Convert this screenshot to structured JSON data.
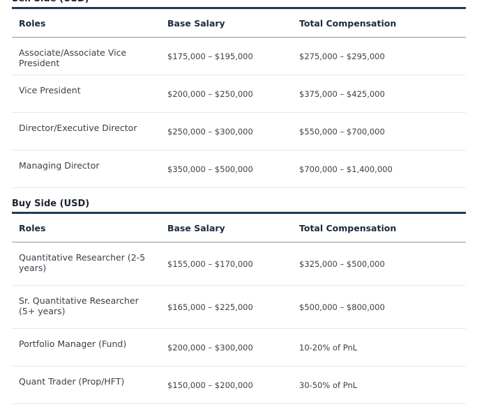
{
  "sections": [
    {
      "title": "Sell Side (USD)",
      "columns": [
        "Roles",
        "Base Salary",
        "Total Compensation"
      ],
      "rows": [
        [
          "Associate/Associate Vice President",
          "$175,000 – $195,000",
          "$275,000 – $295,000"
        ],
        [
          "Vice President",
          "$200,000 – $250,000",
          "$375,000 – $425,000"
        ],
        [
          "Director/Executive Director",
          "$250,000 – $300,000",
          "$550,000 – $700,000"
        ],
        [
          "Managing Director",
          "$350,000 – $500,000",
          "$700,000 – $1,400,000"
        ]
      ]
    },
    {
      "title": "Buy Side (USD)",
      "columns": [
        "Roles",
        "Base Salary",
        "Total Compensation"
      ],
      "rows": [
        [
          "Quantitative Researcher (2-5 years)",
          "$155,000 – $170,000",
          "$325,000 – $500,000"
        ],
        [
          "Sr. Quantitative Researcher (5+ years)",
          "$165,000 – $225,000",
          "$500,000 – $800,000"
        ],
        [
          "Portfolio Manager (Fund)",
          "$200,000 – $300,000",
          "10-20% of PnL"
        ],
        [
          "Quant Trader (Prop/HFT)",
          "$150,000 – $200,000",
          "30-50% of PnL"
        ]
      ]
    }
  ]
}
